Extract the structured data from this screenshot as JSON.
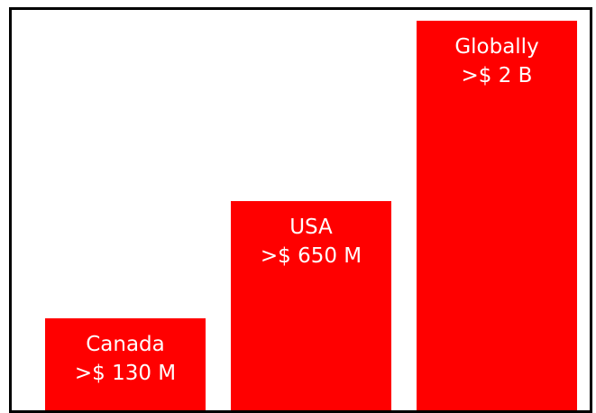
{
  "chart_data": {
    "type": "bar",
    "title": "",
    "xlabel": "",
    "ylabel": "",
    "categories": [
      "Canada",
      "USA",
      "Globally"
    ],
    "value_labels": [
      ">$ 130 M",
      ">$ 650 M",
      ">$ 2 B"
    ],
    "values": [
      130,
      650,
      2000
    ],
    "unit": "USD millions",
    "bar_color": "#ff0000",
    "label_color": "#ffffff",
    "grid": false,
    "legend": "none"
  }
}
